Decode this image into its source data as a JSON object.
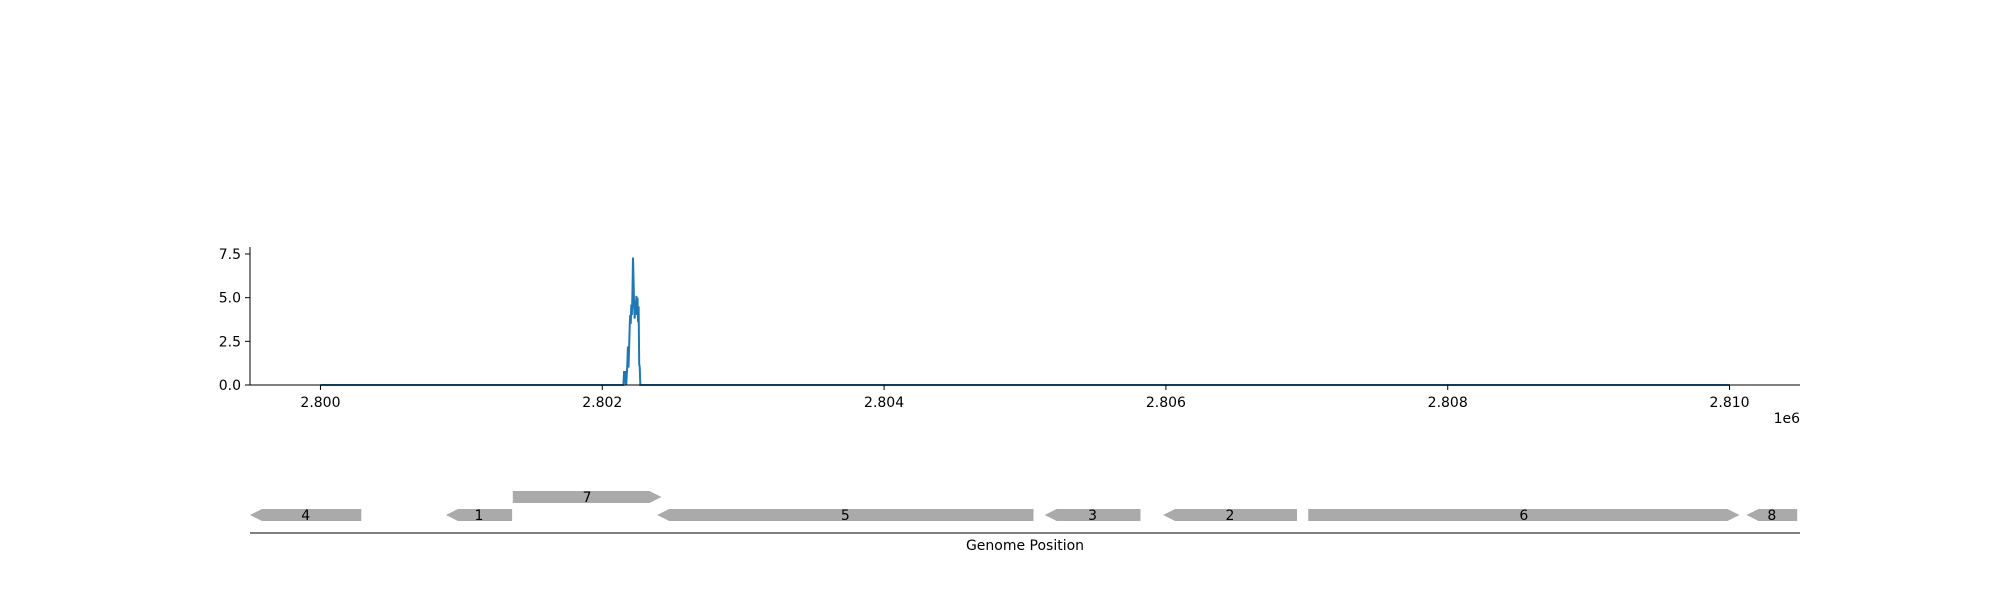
{
  "chart_data": [
    {
      "type": "line",
      "title": "",
      "xlabel": "",
      "ylabel": "",
      "x_offset_label": "1e6",
      "xlim": [
        2799500,
        2810500
      ],
      "ylim": [
        0,
        7.9
      ],
      "x_ticks": [
        2800000,
        2802000,
        2804000,
        2806000,
        2808000,
        2810000
      ],
      "x_tick_labels": [
        "2.800",
        "2.802",
        "2.804",
        "2.806",
        "2.808",
        "2.810"
      ],
      "y_ticks": [
        0,
        2.5,
        5,
        7.5
      ],
      "y_tick_labels": [
        "0.0",
        "2.5",
        "5.0",
        "7.5"
      ],
      "grid": false,
      "series": [
        {
          "color": "#1f77b4",
          "x": [
            2800000,
            2802150,
            2802155,
            2802158,
            2802162,
            2802166,
            2802170,
            2802178,
            2802182,
            2802186,
            2802190,
            2802194,
            2802198,
            2802202,
            2802206,
            2802210,
            2802214,
            2802218,
            2802222,
            2802226,
            2802230,
            2802234,
            2802238,
            2802242,
            2802246,
            2802250,
            2802254,
            2802258,
            2802262,
            2802266,
            2802270,
            2802275,
            2802280,
            2810000
          ],
          "y": [
            0,
            0,
            0.8,
            0.1,
            0.8,
            0.1,
            0,
            1.2,
            2.2,
            1.0,
            2.0,
            3.2,
            4.0,
            3.5,
            4.6,
            4.0,
            5.2,
            7.3,
            6.0,
            4.5,
            3.8,
            4.8,
            4.2,
            5.1,
            4.0,
            5.0,
            3.6,
            4.5,
            1.2,
            1.0,
            0,
            0,
            0,
            0
          ]
        }
      ]
    },
    {
      "type": "gene-track",
      "xlabel": "Genome Position",
      "xlim": [
        2799500,
        2810500
      ],
      "color": "#aaaaaa",
      "genes": [
        {
          "label": "4",
          "start": 2799500,
          "end": 2800290,
          "strand": "-",
          "row": 0
        },
        {
          "label": "1",
          "start": 2800890,
          "end": 2801360,
          "strand": "-",
          "row": 0
        },
        {
          "label": "7",
          "start": 2801365,
          "end": 2802420,
          "strand": "+",
          "row": 1
        },
        {
          "label": "5",
          "start": 2802390,
          "end": 2805060,
          "strand": "-",
          "row": 0
        },
        {
          "label": "3",
          "start": 2805140,
          "end": 2805820,
          "strand": "-",
          "row": 0
        },
        {
          "label": "2",
          "start": 2805980,
          "end": 2806930,
          "strand": "-",
          "row": 0
        },
        {
          "label": "6",
          "start": 2807010,
          "end": 2810070,
          "strand": "+",
          "row": 0
        },
        {
          "label": "8",
          "start": 2810120,
          "end": 2810480,
          "strand": "-",
          "row": 0
        }
      ]
    }
  ]
}
